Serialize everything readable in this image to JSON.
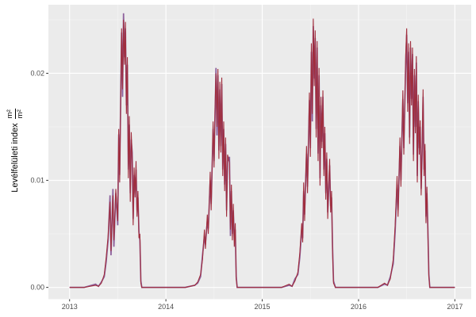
{
  "chart_data": {
    "type": "line",
    "title": "",
    "xlabel": "",
    "ylabel_text": "Levélfelületi index",
    "ylabel_fraction": {
      "numerator": "m²",
      "denominator": "m²"
    },
    "x_ticks": [
      {
        "value": 2013,
        "label": "2013"
      },
      {
        "value": 2014,
        "label": "2014"
      },
      {
        "value": 2015,
        "label": "2015"
      },
      {
        "value": 2016,
        "label": "2016"
      },
      {
        "value": 2017,
        "label": "2017"
      }
    ],
    "x_minor": [
      2013.5,
      2014.5,
      2015.5,
      2016.5
    ],
    "y_ticks": [
      {
        "value": 0.0,
        "label": "0.00"
      },
      {
        "value": 0.01,
        "label": "0.01"
      },
      {
        "value": 0.02,
        "label": "0.02"
      }
    ],
    "y_minor": [
      0.005,
      0.015,
      0.025
    ],
    "xlim": [
      2012.78,
      2017.17
    ],
    "ylim": [
      -0.0011,
      0.0264
    ],
    "grid": true,
    "legend": "none",
    "colors": {
      "panel_bg": "#EBEBEB",
      "grid_major": "#FFFFFF",
      "grid_minor": "#F5F5F5",
      "tick_mark": "#333333",
      "tick_label": "#4D4D4D",
      "series_red": "#A02D3C",
      "series_purple": "#8C5F9B"
    },
    "series_meta": [
      {
        "name": "lai-purple",
        "color_key": "series_purple",
        "width": 1.7
      },
      {
        "name": "lai-red",
        "color_key": "series_red",
        "width": 1.1
      }
    ],
    "points": [
      [
        2013.0,
        0,
        0
      ],
      [
        2013.15,
        0,
        0
      ],
      [
        2013.27,
        0.0002,
        0.0003
      ],
      [
        2013.3,
        0.0001,
        0.0001
      ],
      [
        2013.33,
        0.0004,
        0.0005
      ],
      [
        2013.36,
        0.0012,
        0.001
      ],
      [
        2013.38,
        0.0028,
        0.0024
      ],
      [
        2013.4,
        0.0048,
        0.0044
      ],
      [
        2013.42,
        0.008,
        0.0086
      ],
      [
        2013.43,
        0.0034,
        0.003
      ],
      [
        2013.45,
        0.0086,
        0.0092
      ],
      [
        2013.46,
        0.0044,
        0.0038
      ],
      [
        2013.48,
        0.0092,
        0.0088
      ],
      [
        2013.5,
        0.0062,
        0.0058
      ],
      [
        2013.51,
        0.0148,
        0.0143
      ],
      [
        2013.52,
        0.0098,
        0.0105
      ],
      [
        2013.54,
        0.0242,
        0.0238
      ],
      [
        2013.55,
        0.0185,
        0.0178
      ],
      [
        2013.56,
        0.025,
        0.0256
      ],
      [
        2013.57,
        0.0208,
        0.0215
      ],
      [
        2013.58,
        0.0248,
        0.0242
      ],
      [
        2013.59,
        0.0162,
        0.017
      ],
      [
        2013.6,
        0.0215,
        0.0208
      ],
      [
        2013.61,
        0.0102,
        0.011
      ],
      [
        2013.62,
        0.016,
        0.0152
      ],
      [
        2013.63,
        0.008,
        0.0088
      ],
      [
        2013.64,
        0.0145,
        0.0138
      ],
      [
        2013.65,
        0.012,
        0.0126
      ],
      [
        2013.66,
        0.0058,
        0.0064
      ],
      [
        2013.67,
        0.0112,
        0.0105
      ],
      [
        2013.68,
        0.0084,
        0.009
      ],
      [
        2013.69,
        0.0118,
        0.011
      ],
      [
        2013.7,
        0.0066,
        0.0072
      ],
      [
        2013.71,
        0.009,
        0.0084
      ],
      [
        2013.72,
        0.0046,
        0.0052
      ],
      [
        2013.73,
        0.005,
        0.0044
      ],
      [
        2013.74,
        0.0004,
        0.0006
      ],
      [
        2013.75,
        0,
        0
      ],
      [
        2013.9,
        0,
        0
      ],
      [
        2014.2,
        0,
        0
      ],
      [
        2014.3,
        0.0002,
        0.0002
      ],
      [
        2014.33,
        0.0005,
        0.0004
      ],
      [
        2014.36,
        0.0012,
        0.001
      ],
      [
        2014.38,
        0.0026,
        0.003
      ],
      [
        2014.4,
        0.0054,
        0.0048
      ],
      [
        2014.41,
        0.0036,
        0.004
      ],
      [
        2014.43,
        0.0068,
        0.0062
      ],
      [
        2014.44,
        0.005,
        0.0055
      ],
      [
        2014.46,
        0.0108,
        0.01
      ],
      [
        2014.47,
        0.0072,
        0.0078
      ],
      [
        2014.49,
        0.0155,
        0.0148
      ],
      [
        2014.5,
        0.0112,
        0.0118
      ],
      [
        2014.51,
        0.0168,
        0.016
      ],
      [
        2014.52,
        0.02,
        0.0205
      ],
      [
        2014.53,
        0.015,
        0.0142
      ],
      [
        2014.54,
        0.0204,
        0.0198
      ],
      [
        2014.55,
        0.012,
        0.0128
      ],
      [
        2014.56,
        0.0192,
        0.0185
      ],
      [
        2014.57,
        0.0126,
        0.0132
      ],
      [
        2014.58,
        0.0196,
        0.019
      ],
      [
        2014.59,
        0.0104,
        0.011
      ],
      [
        2014.6,
        0.0155,
        0.0148
      ],
      [
        2014.61,
        0.009,
        0.0096
      ],
      [
        2014.62,
        0.014,
        0.0134
      ],
      [
        2014.63,
        0.0066,
        0.0072
      ],
      [
        2014.64,
        0.0124,
        0.0118
      ],
      [
        2014.66,
        0.0116,
        0.0122
      ],
      [
        2014.67,
        0.0054,
        0.0048
      ],
      [
        2014.68,
        0.0096,
        0.009
      ],
      [
        2014.69,
        0.0044,
        0.005
      ],
      [
        2014.7,
        0.0078,
        0.0072
      ],
      [
        2014.71,
        0.0038,
        0.0044
      ],
      [
        2014.72,
        0.006,
        0.0054
      ],
      [
        2014.73,
        0.0008,
        0.001
      ],
      [
        2014.74,
        0,
        0
      ],
      [
        2014.9,
        0,
        0
      ],
      [
        2015.2,
        0,
        0
      ],
      [
        2015.28,
        0.0003,
        0.0002
      ],
      [
        2015.31,
        0.0001,
        0.0001
      ],
      [
        2015.34,
        0.0006,
        0.0008
      ],
      [
        2015.37,
        0.0014,
        0.0012
      ],
      [
        2015.39,
        0.0032,
        0.0028
      ],
      [
        2015.41,
        0.006,
        0.0054
      ],
      [
        2015.42,
        0.0042,
        0.0046
      ],
      [
        2015.43,
        0.0098,
        0.009
      ],
      [
        2015.44,
        0.0062,
        0.0068
      ],
      [
        2015.46,
        0.0132,
        0.0125
      ],
      [
        2015.47,
        0.0088,
        0.0094
      ],
      [
        2015.49,
        0.0182,
        0.0175
      ],
      [
        2015.5,
        0.0122,
        0.013
      ],
      [
        2015.51,
        0.0228,
        0.022
      ],
      [
        2015.52,
        0.0162,
        0.0155
      ],
      [
        2015.53,
        0.0251,
        0.0244
      ],
      [
        2015.54,
        0.0188,
        0.0195
      ],
      [
        2015.55,
        0.024,
        0.0233
      ],
      [
        2015.56,
        0.014,
        0.0148
      ],
      [
        2015.57,
        0.023,
        0.0224
      ],
      [
        2015.58,
        0.0118,
        0.0125
      ],
      [
        2015.59,
        0.0205,
        0.0198
      ],
      [
        2015.6,
        0.0095,
        0.0102
      ],
      [
        2015.61,
        0.0178,
        0.017
      ],
      [
        2015.62,
        0.013,
        0.0136
      ],
      [
        2015.63,
        0.0184,
        0.0178
      ],
      [
        2015.64,
        0.0104,
        0.011
      ],
      [
        2015.65,
        0.015,
        0.0144
      ],
      [
        2015.66,
        0.0082,
        0.0088
      ],
      [
        2015.67,
        0.0126,
        0.012
      ],
      [
        2015.68,
        0.0064,
        0.007
      ],
      [
        2015.69,
        0.0096,
        0.009
      ],
      [
        2015.7,
        0.012,
        0.0114
      ],
      [
        2015.71,
        0.007,
        0.0076
      ],
      [
        2015.72,
        0.009,
        0.0084
      ],
      [
        2015.73,
        0.0034,
        0.0038
      ],
      [
        2015.74,
        0.0004,
        0.0006
      ],
      [
        2015.76,
        0,
        0
      ],
      [
        2015.9,
        0,
        0
      ],
      [
        2016.2,
        0,
        0
      ],
      [
        2016.27,
        0.0004,
        0.0003
      ],
      [
        2016.3,
        0.0002,
        0.0002
      ],
      [
        2016.33,
        0.0008,
        0.001
      ],
      [
        2016.36,
        0.0026,
        0.0022
      ],
      [
        2016.38,
        0.0058,
        0.0052
      ],
      [
        2016.4,
        0.0104,
        0.0096
      ],
      [
        2016.41,
        0.0066,
        0.0072
      ],
      [
        2016.43,
        0.014,
        0.0132
      ],
      [
        2016.44,
        0.0094,
        0.01
      ],
      [
        2016.46,
        0.0184,
        0.0176
      ],
      [
        2016.47,
        0.0124,
        0.013
      ],
      [
        2016.49,
        0.0218,
        0.021
      ],
      [
        2016.5,
        0.0242,
        0.0236
      ],
      [
        2016.51,
        0.0164,
        0.0172
      ],
      [
        2016.52,
        0.0228,
        0.022
      ],
      [
        2016.53,
        0.0134,
        0.014
      ],
      [
        2016.54,
        0.023,
        0.0224
      ],
      [
        2016.55,
        0.017,
        0.0176
      ],
      [
        2016.56,
        0.0224,
        0.0218
      ],
      [
        2016.57,
        0.0118,
        0.0124
      ],
      [
        2016.58,
        0.0204,
        0.0198
      ],
      [
        2016.59,
        0.0144,
        0.015
      ],
      [
        2016.6,
        0.0216,
        0.021
      ],
      [
        2016.61,
        0.0098,
        0.0104
      ],
      [
        2016.62,
        0.018,
        0.0174
      ],
      [
        2016.63,
        0.0124,
        0.013
      ],
      [
        2016.64,
        0.0156,
        0.015
      ],
      [
        2016.65,
        0.0086,
        0.0092
      ],
      [
        2016.66,
        0.013,
        0.0124
      ],
      [
        2016.67,
        0.0185,
        0.0178
      ],
      [
        2016.68,
        0.0104,
        0.011
      ],
      [
        2016.69,
        0.0134,
        0.0128
      ],
      [
        2016.7,
        0.006,
        0.0066
      ],
      [
        2016.71,
        0.0094,
        0.0088
      ],
      [
        2016.72,
        0.005,
        0.0054
      ],
      [
        2016.73,
        0.001,
        0.0012
      ],
      [
        2016.74,
        0,
        0
      ],
      [
        2016.9,
        0,
        0
      ],
      [
        2017.0,
        0,
        0
      ]
    ]
  }
}
